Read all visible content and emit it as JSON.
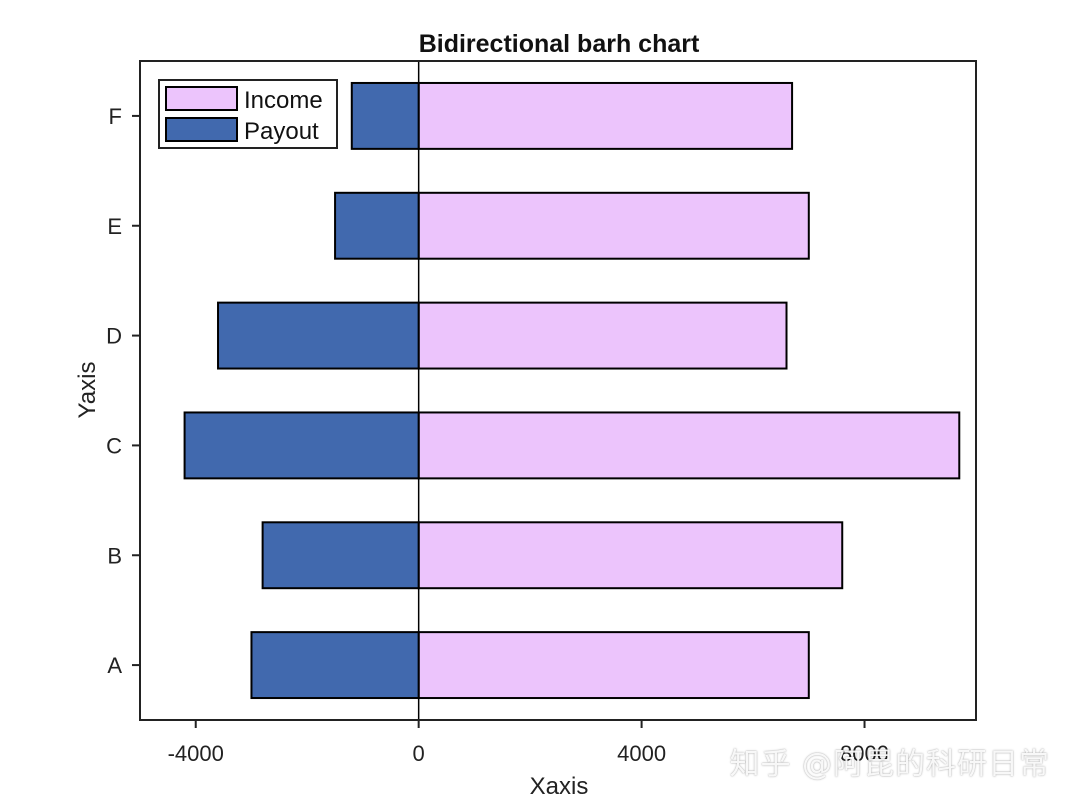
{
  "chart_data": {
    "type": "bar",
    "orientation": "horizontal",
    "layout": "diverging",
    "title": "Bidirectional barh chart",
    "xlabel": "Xaxis",
    "ylabel": "Yaxis",
    "categories": [
      "A",
      "B",
      "C",
      "D",
      "E",
      "F"
    ],
    "series": [
      {
        "name": "Income",
        "color": "#ecc4fc",
        "values": [
          7000,
          7600,
          9700,
          6600,
          7000,
          6700
        ]
      },
      {
        "name": "Payout",
        "color": "#4169ae",
        "values": [
          -3000,
          -2800,
          -4200,
          -3600,
          -1500,
          -1200
        ]
      }
    ],
    "xlim": [
      -5000,
      10000
    ],
    "xticks": [
      -4000,
      0,
      4000,
      8000
    ],
    "xtick_labels": [
      "-4000",
      "0",
      "4000",
      "8000"
    ],
    "zero_line": true,
    "grid": false,
    "legend": "top-left",
    "colors": {
      "edge": "#000000",
      "text": "#222222"
    }
  },
  "watermark": "知乎 @阿昆的科研日常"
}
